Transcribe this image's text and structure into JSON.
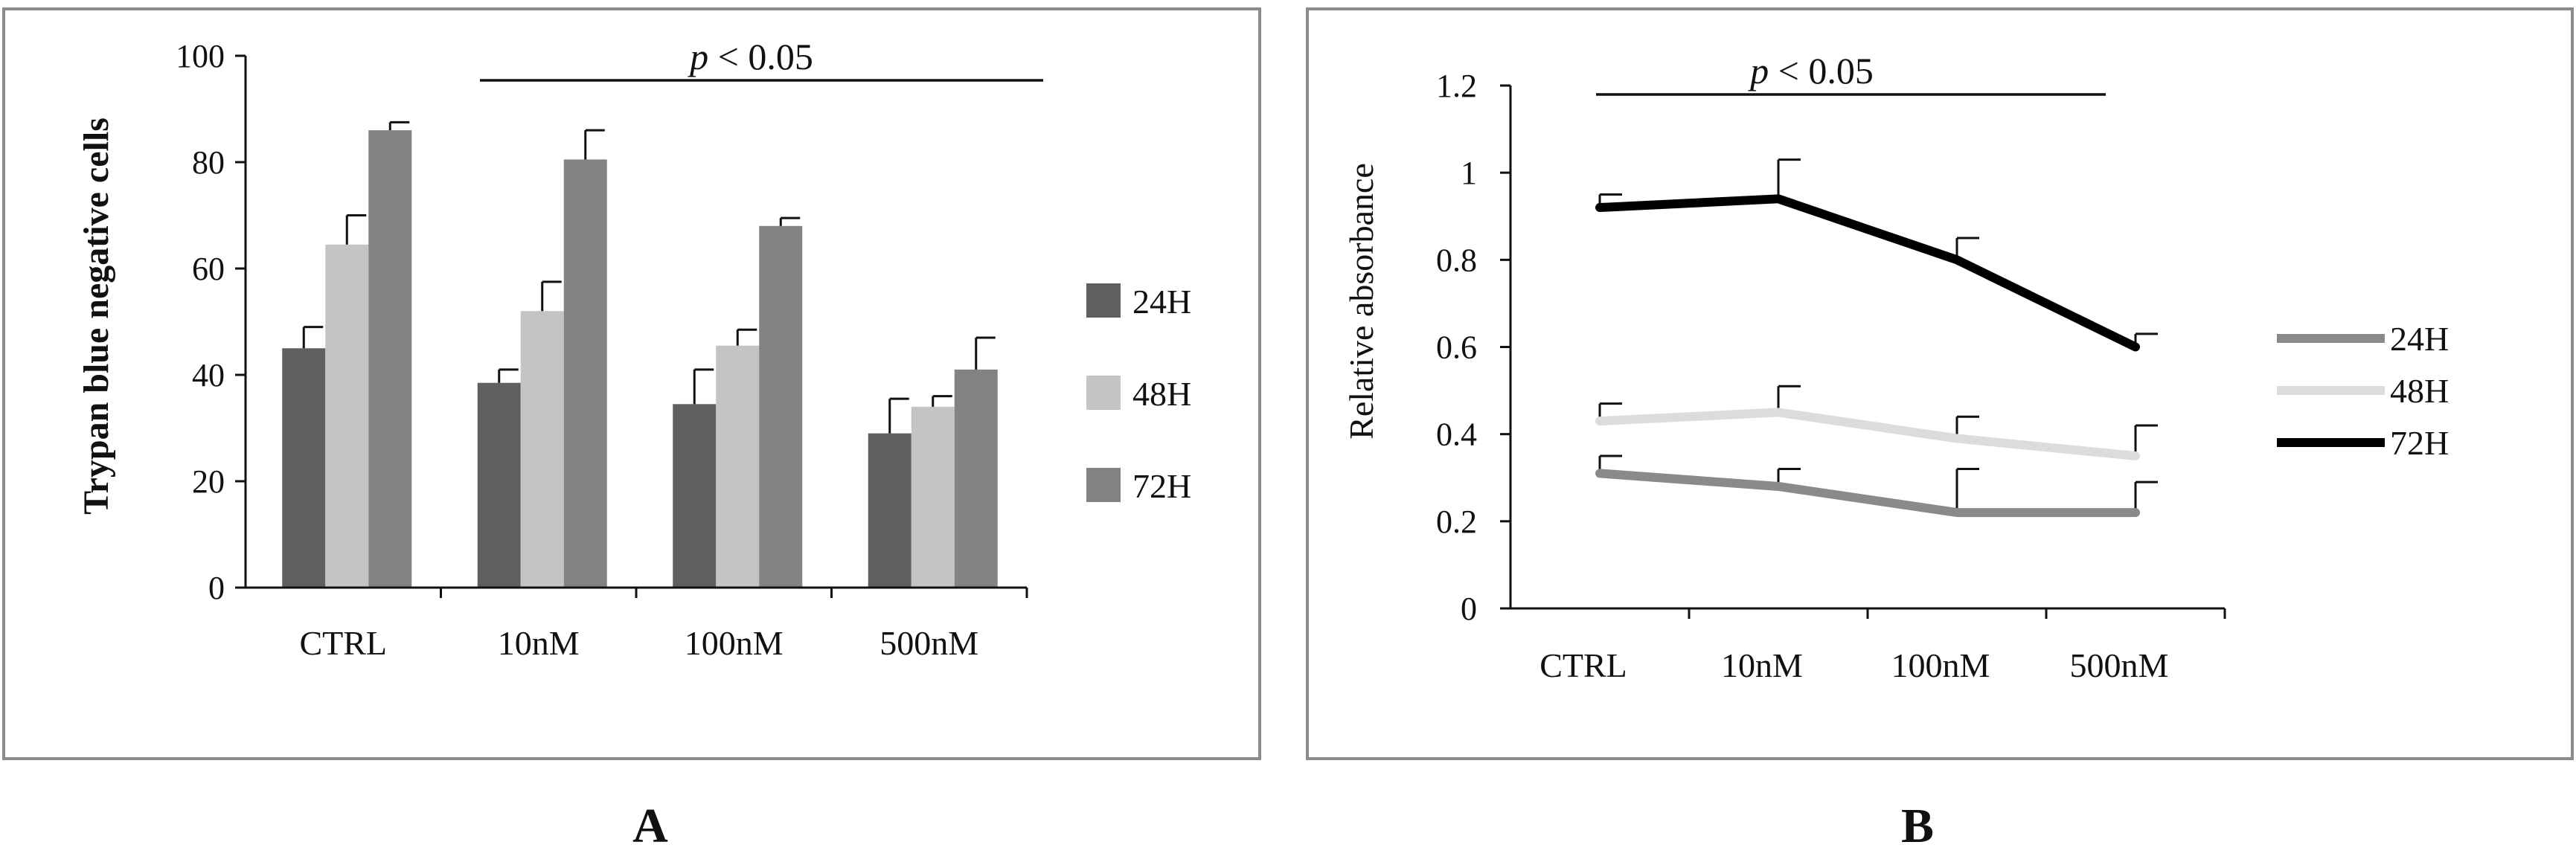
{
  "colors": {
    "24H": "#5f5f5f",
    "48H": "#c4c4c4",
    "72H": "#838383",
    "line_24H": "#8a8a8a",
    "line_48H": "#dcdcdc",
    "line_72H": "#000000",
    "frame": "#8c8c8c",
    "axis": "#111111"
  },
  "chart_data": [
    {
      "panel": "A",
      "type": "bar",
      "categories": [
        "CTRL",
        "10nM",
        "100nM",
        "500nM"
      ],
      "series": [
        {
          "name": "24H",
          "values": [
            45,
            38.5,
            34.5,
            29
          ],
          "errors": [
            4,
            2.5,
            6.5,
            6.5
          ]
        },
        {
          "name": "48H",
          "values": [
            64.5,
            52,
            45.5,
            34
          ],
          "errors": [
            5.5,
            5.5,
            3,
            2
          ]
        },
        {
          "name": "72H",
          "values": [
            86,
            80.5,
            68,
            41
          ],
          "errors": [
            1.5,
            5.5,
            1.5,
            6
          ]
        }
      ],
      "title": "",
      "xlabel": "",
      "ylabel": "Trypan blue negative cells",
      "ylim": [
        0,
        100
      ],
      "yticks": [
        "0",
        "20",
        "40",
        "60",
        "80",
        "100"
      ],
      "annotation": {
        "p_label": "p",
        "text": " < 0.05"
      },
      "legend": [
        "24H",
        "48H",
        "72H"
      ]
    },
    {
      "panel": "B",
      "type": "line",
      "categories": [
        "CTRL",
        "10nM",
        "100nM",
        "500nM"
      ],
      "series": [
        {
          "name": "24H",
          "values": [
            0.31,
            0.28,
            0.22,
            0.22
          ],
          "errors": [
            0.04,
            0.04,
            0.1,
            0.07
          ]
        },
        {
          "name": "48H",
          "values": [
            0.43,
            0.45,
            0.39,
            0.35
          ],
          "errors": [
            0.04,
            0.06,
            0.05,
            0.07
          ]
        },
        {
          "name": "72H",
          "values": [
            0.92,
            0.94,
            0.8,
            0.6
          ],
          "errors": [
            0.03,
            0.09,
            0.05,
            0.03
          ]
        }
      ],
      "title": "",
      "xlabel": "",
      "ylabel": "Relative absorbance",
      "ylim": [
        0,
        1.2
      ],
      "yticks": [
        "0",
        "0.2",
        "0.4",
        "0.6",
        "0.8",
        "1",
        "1.2"
      ],
      "annotation": {
        "p_label": "p",
        "text": " < 0.05"
      },
      "legend": [
        "24H",
        "48H",
        "72H"
      ]
    }
  ],
  "panel_labels": [
    "A",
    "B"
  ]
}
